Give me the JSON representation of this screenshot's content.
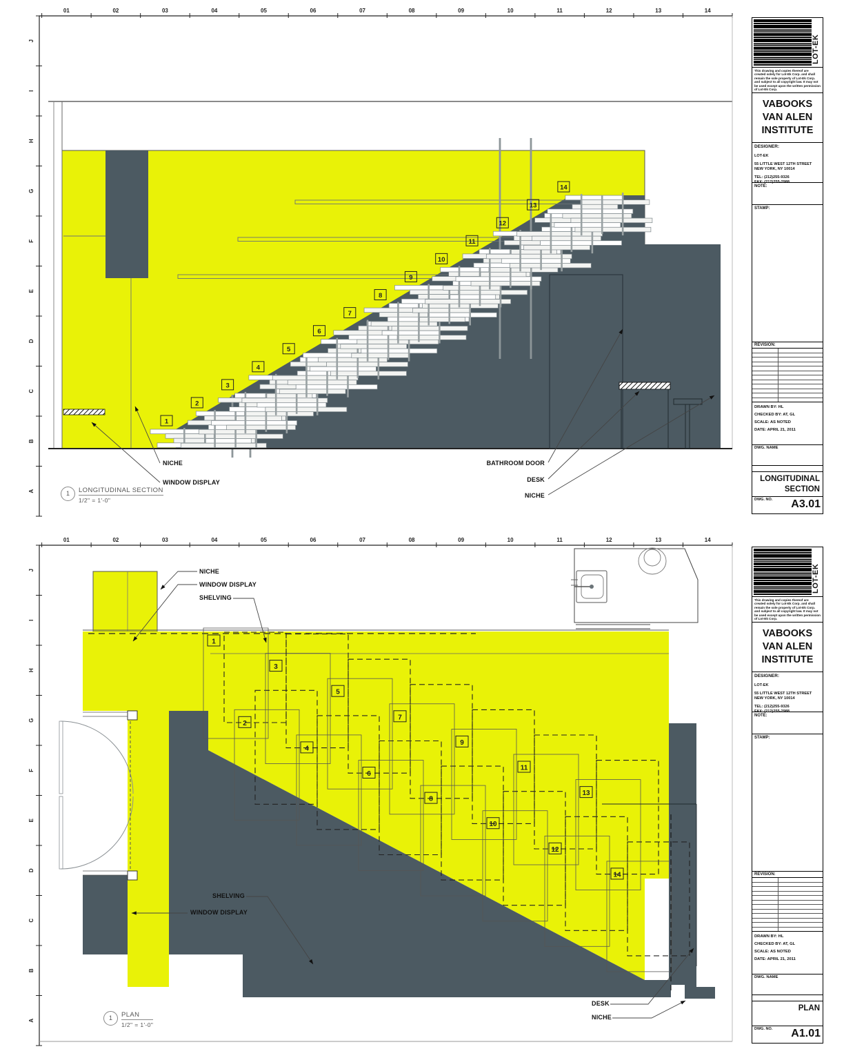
{
  "grid": {
    "columns": [
      "01",
      "02",
      "03",
      "04",
      "05",
      "06",
      "07",
      "08",
      "09",
      "10",
      "11",
      "12",
      "13",
      "14"
    ],
    "rows": [
      "J",
      "I",
      "H",
      "G",
      "F",
      "E",
      "D",
      "C",
      "B",
      "A"
    ]
  },
  "titleblock": {
    "logo_text": "LOT-EK",
    "legal": "This drawing and copies thereof are created solely for Lot-Ek Corp. and shall remain the sole property of Lot-Ek Corp. and subject to all copyright law. It may not be used except upon the written permission of Lot-Ek Corp.",
    "project_line1": "VABOOKS",
    "project_line2": "VAN ALEN",
    "project_line3": "INSTITUTE",
    "designer_label": "DESIGNER:",
    "designer_name": "LOT-EK",
    "address_line1": "55 LITTLE WEST 12TH STREET",
    "address_line2": "NEW YORK, NY 10014",
    "tel": "TEL: (212)255-9326",
    "fax": "FAX: (212)255-2988",
    "note_label": "NOTE:",
    "stamp_label": "STAMP:",
    "revision_label": "REVISION:",
    "drawn_by": "DRAWN BY:  HL",
    "checked_by": "CHECKED BY:  AT, GL",
    "scale": "SCALE:  AS NOTED",
    "date": "DATE:  APRIL 21, 2011",
    "dwg_name_label": "DWG. NAME",
    "dwg_no_label": "DWG. NO."
  },
  "sheets": [
    {
      "name": "longitudinal-section",
      "dwg_title_line1": "LONGITUDINAL",
      "dwg_title_line2": "SECTION",
      "dwg_no": "A3.01",
      "callout": {
        "number": "1",
        "title": "LONGITUDINAL SECTION",
        "scale": "1/2\" = 1'-0\""
      },
      "steps": [
        "1",
        "2",
        "3",
        "4",
        "5",
        "6",
        "7",
        "8",
        "9",
        "10",
        "11",
        "12",
        "13",
        "14"
      ],
      "annotations": [
        "NICHE",
        "WINDOW DISPLAY",
        "BATHROOM DOOR",
        "DESK",
        "NICHE"
      ]
    },
    {
      "name": "plan",
      "dwg_title_line1": "PLAN",
      "dwg_title_line2": "",
      "dwg_no": "A1.01",
      "callout": {
        "number": "1",
        "title": "PLAN",
        "scale": "1/2\" = 1'-0\""
      },
      "steps": [
        "1",
        "2",
        "3",
        "4",
        "5",
        "6",
        "7",
        "8",
        "9",
        "10",
        "11",
        "12",
        "13",
        "14"
      ],
      "annotations": [
        "NICHE",
        "WINDOW DISPLAY",
        "SHELVING",
        "SHELVING",
        "WINDOW DISPLAY",
        "DESK",
        "NICHE"
      ]
    }
  ],
  "colors": {
    "yellow": "#e9f207",
    "slate": "#4c5a62"
  }
}
